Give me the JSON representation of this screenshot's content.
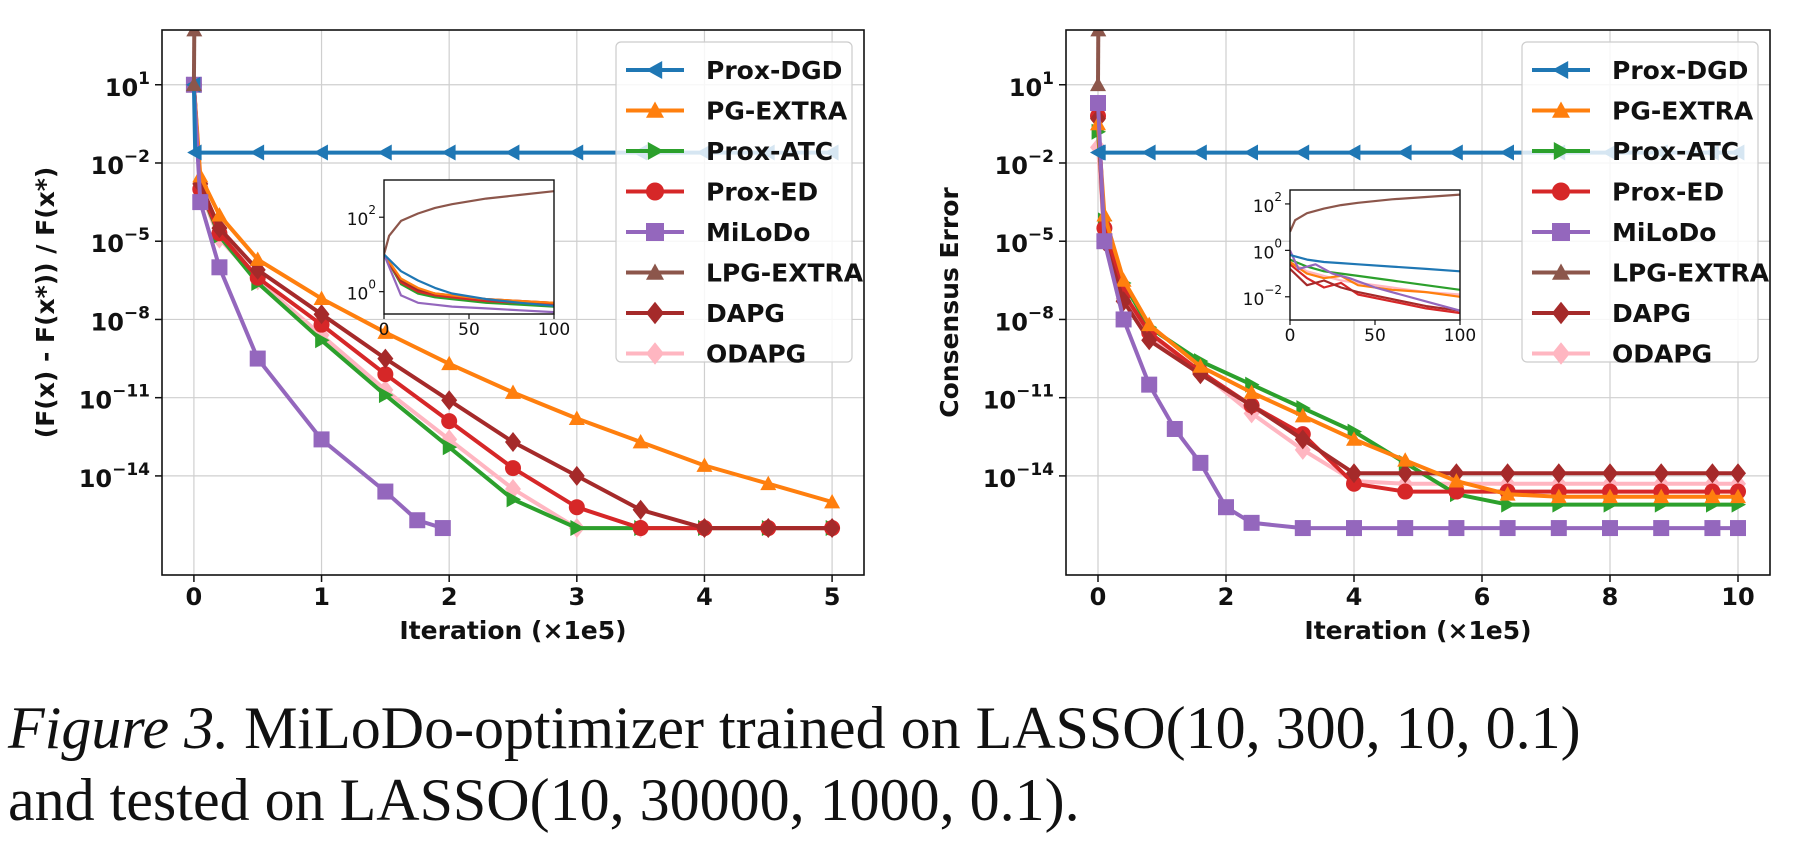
{
  "caption": {
    "label": "Figure 3.",
    "text_line1": " MiLoDo-optimizer trained on LASSO(10, 300, 10, 0.1)",
    "text_line2": "and tested on LASSO(10, 30000, 1000, 0.1)."
  },
  "series_styles": [
    {
      "name": "Prox-DGD",
      "color": "#1f77b4",
      "marker": "triangle-left"
    },
    {
      "name": "PG-EXTRA",
      "color": "#ff7f0e",
      "marker": "triangle-up"
    },
    {
      "name": "Prox-ATC",
      "color": "#2ca02c",
      "marker": "triangle-right"
    },
    {
      "name": "Prox-ED",
      "color": "#d62728",
      "marker": "circle"
    },
    {
      "name": "MiLoDo",
      "color": "#9467bd",
      "marker": "square"
    },
    {
      "name": "LPG-EXTRA",
      "color": "#8c564b",
      "marker": "triangle-up"
    },
    {
      "name": "DAPG",
      "color": "#a52a2a",
      "marker": "diamond"
    },
    {
      "name": "ODAPG",
      "color": "#ffb6c1",
      "marker": "diamond"
    }
  ],
  "chart_data": [
    {
      "type": "line",
      "xlabel": "Iteration (×1e5)",
      "ylabel": "(F(x) - F(x*)) / F(x*)",
      "yscale": "log",
      "xlim": [
        -0.25,
        5.25
      ],
      "ylim_exp": [
        -17.8,
        3.1
      ],
      "xticks": [
        0,
        1,
        2,
        3,
        4,
        5
      ],
      "xtick_labels": [
        "0",
        "1",
        "2",
        "3",
        "4",
        "5"
      ],
      "ytick_exps": [
        1,
        -2,
        -5,
        -8,
        -11,
        -14
      ],
      "grid": true,
      "legend": "top-right",
      "series": [
        {
          "name": "Prox-DGD",
          "x": [
            0,
            0.01,
            0.5,
            1,
            1.5,
            2,
            2.5,
            3,
            3.5,
            4,
            4.5,
            5
          ],
          "y_exp": [
            1,
            -1.6,
            -1.6,
            -1.6,
            -1.6,
            -1.6,
            -1.6,
            -1.6,
            -1.6,
            -1.6,
            -1.6,
            -1.6
          ]
        },
        {
          "name": "PG-EXTRA",
          "x": [
            0,
            0.05,
            0.2,
            0.5,
            1,
            1.5,
            2,
            2.5,
            3,
            3.5,
            4,
            4.5,
            5
          ],
          "y_exp": [
            1,
            -2.5,
            -4.0,
            -5.7,
            -7.2,
            -8.5,
            -9.7,
            -10.8,
            -11.8,
            -12.7,
            -13.6,
            -14.3,
            -15.0
          ]
        },
        {
          "name": "Prox-ATC",
          "x": [
            0,
            0.05,
            0.2,
            0.5,
            1,
            1.5,
            2,
            2.5,
            3,
            3.5,
            4,
            4.5,
            5
          ],
          "y_exp": [
            1,
            -3.0,
            -4.8,
            -6.6,
            -8.8,
            -10.9,
            -12.9,
            -14.9,
            -16.0,
            -16.0,
            -16.0,
            -16.0,
            -16.0
          ]
        },
        {
          "name": "Prox-ED",
          "x": [
            0,
            0.05,
            0.2,
            0.5,
            1,
            1.5,
            2,
            2.5,
            3,
            3.5,
            4,
            4.5,
            5
          ],
          "y_exp": [
            1,
            -3.0,
            -4.7,
            -6.4,
            -8.2,
            -10.1,
            -11.9,
            -13.7,
            -15.2,
            -16.0,
            -16.0,
            -16.0,
            -16.0
          ]
        },
        {
          "name": "MiLoDo",
          "x": [
            0,
            0.05,
            0.2,
            0.5,
            1,
            1.5,
            1.75,
            1.95
          ],
          "y_exp": [
            1,
            -3.5,
            -6.0,
            -9.5,
            -12.6,
            -14.6,
            -15.7,
            -16.0
          ]
        },
        {
          "name": "LPG-EXTRA",
          "x": [
            0,
            0.003
          ],
          "y_exp": [
            1,
            3.1
          ]
        },
        {
          "name": "DAPG",
          "x": [
            0,
            0.05,
            0.2,
            0.5,
            1,
            1.5,
            2,
            2.5,
            3,
            3.5,
            4,
            4.5,
            5
          ],
          "y_exp": [
            1,
            -2.8,
            -4.5,
            -6.1,
            -7.8,
            -9.5,
            -11.1,
            -12.7,
            -14.0,
            -15.3,
            -16.0,
            -16.0,
            -16.0
          ]
        },
        {
          "name": "ODAPG",
          "x": [
            0,
            0.05,
            0.2,
            0.5,
            1,
            1.5,
            2,
            2.5,
            3,
            3.5,
            4,
            4.5,
            5
          ],
          "y_exp": [
            1,
            -3.1,
            -4.9,
            -6.5,
            -8.6,
            -10.7,
            -12.6,
            -14.5,
            -16.0,
            -16.0,
            -16.0,
            -16.0,
            -16.0
          ]
        }
      ],
      "inset": {
        "xlim": [
          0,
          100
        ],
        "xticks": [
          0,
          50,
          100
        ],
        "xtick_labels": [
          "0",
          "50",
          "100"
        ],
        "ylim_exp": [
          -0.6,
          3.0
        ],
        "ytick_exps": [
          2,
          0
        ],
        "series": [
          {
            "name": "Prox-DGD",
            "x": [
              0,
              10,
              20,
              30,
              40,
              60,
              80,
              100
            ],
            "y_exp": [
              1.0,
              0.55,
              0.3,
              0.1,
              -0.05,
              -0.2,
              -0.3,
              -0.38
            ]
          },
          {
            "name": "PG-EXTRA",
            "x": [
              0,
              10,
              20,
              30,
              40,
              60,
              80,
              100
            ],
            "y_exp": [
              1.0,
              0.35,
              0.1,
              -0.05,
              -0.1,
              -0.2,
              -0.25,
              -0.3
            ]
          },
          {
            "name": "Prox-ATC",
            "x": [
              0,
              10,
              20,
              30,
              40,
              60,
              80,
              100
            ],
            "y_exp": [
              1.0,
              0.2,
              -0.05,
              -0.15,
              -0.2,
              -0.3,
              -0.35,
              -0.4
            ]
          },
          {
            "name": "Prox-ED",
            "x": [
              0,
              10,
              20,
              30,
              40,
              60,
              80,
              100
            ],
            "y_exp": [
              1.0,
              0.25,
              0.0,
              -0.1,
              -0.15,
              -0.25,
              -0.3,
              -0.35
            ]
          },
          {
            "name": "MiLoDo",
            "x": [
              0,
              10,
              20,
              30,
              40,
              60,
              80,
              100
            ],
            "y_exp": [
              1.0,
              -0.1,
              -0.3,
              -0.35,
              -0.4,
              -0.45,
              -0.5,
              -0.55
            ]
          },
          {
            "name": "LPG-EXTRA",
            "x": [
              0,
              3,
              10,
              20,
              30,
              40,
              60,
              80,
              100
            ],
            "y_exp": [
              1.0,
              1.5,
              1.9,
              2.1,
              2.25,
              2.35,
              2.5,
              2.6,
              2.7
            ]
          },
          {
            "name": "DAPG",
            "x": [
              0,
              10,
              20,
              30,
              40,
              60,
              80,
              100
            ],
            "y_exp": [
              1.0,
              0.3,
              0.05,
              -0.05,
              -0.1,
              -0.2,
              -0.25,
              -0.3
            ]
          },
          {
            "name": "ODAPG",
            "x": [
              0,
              10,
              20,
              30,
              40,
              60,
              80,
              100
            ],
            "y_exp": [
              1.0,
              0.2,
              -0.05,
              -0.1,
              -0.15,
              -0.2,
              -0.25,
              -0.3
            ]
          }
        ]
      }
    },
    {
      "type": "line",
      "xlabel": "Iteration (×1e5)",
      "ylabel": "Consensus Error",
      "yscale": "log",
      "xlim": [
        -0.5,
        10.5
      ],
      "ylim_exp": [
        -17.8,
        3.1
      ],
      "xticks": [
        0,
        2,
        4,
        6,
        8,
        10
      ],
      "xtick_labels": [
        "0",
        "2",
        "4",
        "6",
        "8",
        "10"
      ],
      "ytick_exps": [
        1,
        -2,
        -5,
        -8,
        -11,
        -14
      ],
      "grid": true,
      "legend": "top-right",
      "series": [
        {
          "name": "Prox-DGD",
          "x": [
            0,
            0.02,
            0.8,
            1.6,
            2.4,
            3.2,
            4,
            4.8,
            5.6,
            6.4,
            7.2,
            8,
            8.8,
            9.6,
            10
          ],
          "y_exp": [
            -1.6,
            -1.6,
            -1.6,
            -1.6,
            -1.6,
            -1.6,
            -1.6,
            -1.6,
            -1.6,
            -1.6,
            -1.6,
            -1.6,
            -1.6,
            -1.6,
            -1.6
          ]
        },
        {
          "name": "PG-EXTRA",
          "x": [
            0,
            0.1,
            0.4,
            0.8,
            1.6,
            2.4,
            3.2,
            4,
            4.8,
            5.6,
            6.4,
            7.2,
            8,
            8.8,
            9.6,
            10
          ],
          "y_exp": [
            -0.5,
            -4.0,
            -6.5,
            -8.2,
            -9.8,
            -10.8,
            -11.7,
            -12.6,
            -13.4,
            -14.2,
            -14.7,
            -14.8,
            -14.8,
            -14.8,
            -14.8,
            -14.8
          ]
        },
        {
          "name": "Prox-ATC",
          "x": [
            0,
            0.1,
            0.4,
            0.8,
            1.6,
            2.4,
            3.2,
            4,
            4.8,
            5.6,
            6.4,
            7.2,
            8,
            8.8,
            9.6,
            10
          ],
          "y_exp": [
            -0.8,
            -4.2,
            -6.6,
            -8.3,
            -9.6,
            -10.5,
            -11.4,
            -12.3,
            -13.5,
            -14.7,
            -15.1,
            -15.1,
            -15.1,
            -15.1,
            -15.1,
            -15.1
          ]
        },
        {
          "name": "Prox-ED",
          "x": [
            0,
            0.1,
            0.4,
            0.8,
            1.6,
            2.4,
            3.2,
            4,
            4.8,
            5.6,
            6.4,
            7.2,
            8,
            8.8,
            9.6,
            10
          ],
          "y_exp": [
            -0.2,
            -4.5,
            -7.0,
            -8.5,
            -10.0,
            -11.3,
            -12.4,
            -14.3,
            -14.6,
            -14.6,
            -14.6,
            -14.6,
            -14.6,
            -14.6,
            -14.6,
            -14.6
          ]
        },
        {
          "name": "MiLoDo",
          "x": [
            0,
            0.1,
            0.4,
            0.8,
            1.2,
            1.6,
            2.0,
            2.4,
            3.2,
            4,
            4.8,
            5.6,
            6.4,
            7.2,
            8,
            8.8,
            9.6,
            10
          ],
          "y_exp": [
            0.3,
            -5.0,
            -8.0,
            -10.5,
            -12.2,
            -13.5,
            -15.2,
            -15.8,
            -16.0,
            -16.0,
            -16.0,
            -16.0,
            -16.0,
            -16.0,
            -16.0,
            -16.0,
            -16.0,
            -16.0
          ]
        },
        {
          "name": "LPG-EXTRA",
          "x": [
            0,
            0.005
          ],
          "y_exp": [
            1.0,
            3.1
          ]
        },
        {
          "name": "DAPG",
          "x": [
            0,
            0.1,
            0.4,
            0.8,
            1.6,
            2.4,
            3.2,
            4,
            4.8,
            5.6,
            6.4,
            7.2,
            8,
            8.8,
            9.6,
            10
          ],
          "y_exp": [
            -0.3,
            -5.0,
            -7.3,
            -8.8,
            -10.1,
            -11.3,
            -12.6,
            -13.9,
            -13.9,
            -13.9,
            -13.9,
            -13.9,
            -13.9,
            -13.9,
            -13.9,
            -13.9
          ]
        },
        {
          "name": "ODAPG",
          "x": [
            0,
            0.1,
            0.4,
            0.8,
            1.6,
            2.4,
            3.2,
            4,
            4.8,
            5.6,
            6.4,
            7.2,
            8,
            8.8,
            9.6,
            10
          ],
          "y_exp": [
            -1.4,
            -4.8,
            -7.2,
            -8.6,
            -10.0,
            -11.6,
            -13.0,
            -14.2,
            -14.3,
            -14.3,
            -14.3,
            -14.3,
            -14.3,
            -14.3,
            -14.3,
            -14.3
          ]
        }
      ],
      "inset": {
        "xlim": [
          0,
          100
        ],
        "xticks": [
          0,
          50,
          100
        ],
        "xtick_labels": [
          "0",
          "50",
          "100"
        ],
        "ylim_exp": [
          -3.0,
          2.6
        ],
        "ytick_exps": [
          2,
          0,
          -2
        ],
        "series": [
          {
            "name": "Prox-DGD",
            "x": [
              0,
              10,
              20,
              30,
              40,
              60,
              80,
              100
            ],
            "y_exp": [
              -0.2,
              -0.4,
              -0.5,
              -0.55,
              -0.6,
              -0.7,
              -0.8,
              -0.9
            ]
          },
          {
            "name": "PG-EXTRA",
            "x": [
              0,
              10,
              20,
              30,
              40,
              60,
              80,
              100
            ],
            "y_exp": [
              -0.5,
              -1.0,
              -1.2,
              -1.1,
              -1.5,
              -1.7,
              -1.8,
              -2.0
            ]
          },
          {
            "name": "Prox-ATC",
            "x": [
              0,
              10,
              20,
              30,
              40,
              60,
              80,
              100
            ],
            "y_exp": [
              -0.4,
              -0.7,
              -0.9,
              -1.0,
              -1.1,
              -1.3,
              -1.5,
              -1.7
            ]
          },
          {
            "name": "Prox-ED",
            "x": [
              0,
              10,
              20,
              30,
              40,
              60,
              80,
              100
            ],
            "y_exp": [
              -0.6,
              -1.2,
              -1.6,
              -1.4,
              -1.9,
              -2.2,
              -2.5,
              -2.7
            ]
          },
          {
            "name": "MiLoDo",
            "x": [
              0,
              5,
              15,
              25,
              35,
              50,
              65,
              80,
              100
            ],
            "y_exp": [
              0.0,
              -0.8,
              -0.6,
              -1.0,
              -1.2,
              -1.6,
              -1.9,
              -2.2,
              -2.6
            ]
          },
          {
            "name": "LPG-EXTRA",
            "x": [
              0,
              3,
              10,
              20,
              30,
              40,
              60,
              80,
              100
            ],
            "y_exp": [
              0.8,
              1.3,
              1.6,
              1.8,
              1.95,
              2.05,
              2.2,
              2.3,
              2.4
            ]
          },
          {
            "name": "DAPG",
            "x": [
              0,
              10,
              20,
              30,
              40,
              60,
              80,
              100
            ],
            "y_exp": [
              -0.8,
              -1.5,
              -1.3,
              -1.6,
              -1.8,
              -2.1,
              -2.4,
              -2.6
            ]
          },
          {
            "name": "ODAPG",
            "x": [
              0,
              10,
              20,
              30,
              40,
              60,
              80,
              100
            ],
            "y_exp": [
              -0.5,
              -0.9,
              -1.1,
              -1.3,
              -1.4,
              -1.6,
              -1.8,
              -1.9
            ]
          }
        ]
      }
    }
  ]
}
